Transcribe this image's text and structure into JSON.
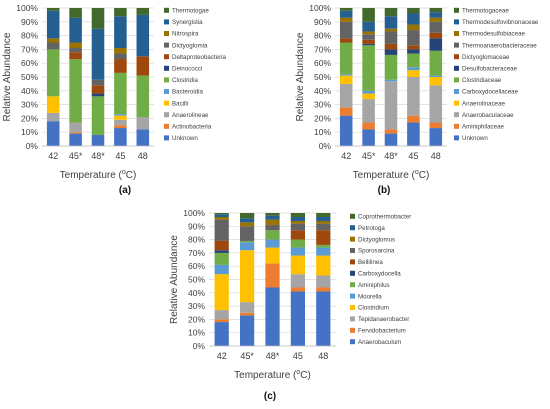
{
  "chart_data": [
    {
      "type": "bar",
      "panel_label": "(a)",
      "xlabel": "Temperature (",
      "xlabel_unit": "o",
      "xlabel_end": "C)",
      "ylabel": "Relative Abundance",
      "categories": [
        "42",
        "45*",
        "48*",
        "45",
        "48"
      ],
      "y_ticks": [
        "0%",
        "10%",
        "20%",
        "30%",
        "40%",
        "50%",
        "60%",
        "70%",
        "80%",
        "90%",
        "100%"
      ],
      "ylim": [
        0,
        100
      ],
      "stacked": true,
      "legend_position": "right",
      "series": [
        {
          "name": "Unknown",
          "color": "#4472C4",
          "values": [
            18,
            9,
            8,
            13,
            12
          ]
        },
        {
          "name": "Actinobacteria",
          "color": "#ED7D31",
          "values": [
            0,
            1,
            0,
            2,
            0
          ]
        },
        {
          "name": "Anaerolineae",
          "color": "#A5A5A5",
          "values": [
            6,
            7,
            0,
            4,
            9
          ]
        },
        {
          "name": "Bacilli",
          "color": "#FFC000",
          "values": [
            12,
            0,
            0,
            3,
            0
          ]
        },
        {
          "name": "Bacteroidia",
          "color": "#5B9BD5",
          "values": [
            0,
            0,
            0,
            1,
            0
          ]
        },
        {
          "name": "Clostridia",
          "color": "#70AD47",
          "values": [
            34,
            46,
            28,
            30,
            30
          ]
        },
        {
          "name": "Deinococci",
          "color": "#264478",
          "values": [
            0,
            0,
            2,
            0,
            0
          ]
        },
        {
          "name": "Deltaproteobacteria",
          "color": "#9E480E",
          "values": [
            0,
            5,
            6,
            10,
            14
          ]
        },
        {
          "name": "Dictyoglomia",
          "color": "#636363",
          "values": [
            5,
            3,
            4,
            4,
            0
          ]
        },
        {
          "name": "Nitrospira",
          "color": "#997300",
          "values": [
            3,
            4,
            0,
            4,
            0
          ]
        },
        {
          "name": "Synergistia",
          "color": "#255E91",
          "values": [
            20,
            18,
            37,
            23,
            30
          ]
        },
        {
          "name": "Thermotogae",
          "color": "#43682B",
          "values": [
            2,
            7,
            15,
            6,
            5
          ]
        }
      ]
    },
    {
      "type": "bar",
      "panel_label": "(b)",
      "xlabel": "Temperature (",
      "xlabel_unit": "o",
      "xlabel_end": "C)",
      "ylabel": "Relative Abundance",
      "categories": [
        "42",
        "45*",
        "48*",
        "45",
        "48"
      ],
      "y_ticks": [
        "0%",
        "10%",
        "20%",
        "30%",
        "40%",
        "50%",
        "60%",
        "70%",
        "80%",
        "90%",
        "100%"
      ],
      "ylim": [
        0,
        100
      ],
      "stacked": true,
      "legend_position": "right",
      "series": [
        {
          "name": "Unknown",
          "color": "#4472C4",
          "values": [
            22,
            12,
            9,
            17,
            13
          ]
        },
        {
          "name": "Aminiphilaceae",
          "color": "#ED7D31",
          "values": [
            6,
            5,
            3,
            5,
            4
          ]
        },
        {
          "name": "Anaerobaculaceae",
          "color": "#A5A5A5",
          "values": [
            17,
            17,
            35,
            28,
            27
          ]
        },
        {
          "name": "Anaerolinaceae",
          "color": "#FFC000",
          "values": [
            6,
            4,
            0,
            5,
            6
          ]
        },
        {
          "name": "Carboxydocellaceae",
          "color": "#5B9BD5",
          "values": [
            1,
            2,
            1,
            2,
            1
          ]
        },
        {
          "name": "Clostridiaceae",
          "color": "#70AD47",
          "values": [
            23,
            33,
            18,
            10,
            18
          ]
        },
        {
          "name": "Desulfobacteraceae",
          "color": "#264478",
          "values": [
            0,
            1,
            4,
            3,
            9
          ]
        },
        {
          "name": "Dictyoglomaceae",
          "color": "#9E480E",
          "values": [
            3,
            3,
            4,
            3,
            4
          ]
        },
        {
          "name": "Thermoanaerobacteraceae",
          "color": "#636363",
          "values": [
            12,
            4,
            9,
            11,
            8
          ]
        },
        {
          "name": "Thermodesulfobiaceae",
          "color": "#997300",
          "values": [
            3,
            2,
            2,
            4,
            3
          ]
        },
        {
          "name": "Thermodesulfovibrionaceae",
          "color": "#255E91",
          "values": [
            5,
            7,
            9,
            8,
            4
          ]
        },
        {
          "name": "Thermotogaceae",
          "color": "#43682B",
          "values": [
            2,
            10,
            6,
            4,
            3
          ]
        }
      ]
    },
    {
      "type": "bar",
      "panel_label": "(c)",
      "xlabel": "Temperature (",
      "xlabel_unit": "o",
      "xlabel_end": "C)",
      "ylabel": "Relative Abundance",
      "categories": [
        "42",
        "45*",
        "48*",
        "45",
        "48"
      ],
      "y_ticks": [
        "0%",
        "10%",
        "20%",
        "30%",
        "40%",
        "50%",
        "60%",
        "70%",
        "80%",
        "90%",
        "100%"
      ],
      "ylim": [
        0,
        100
      ],
      "stacked": true,
      "legend_position": "right",
      "series": [
        {
          "name": "Anaerobaculum",
          "color": "#4472C4",
          "values": [
            18,
            23,
            44,
            41,
            41
          ]
        },
        {
          "name": "Fervidobacterium",
          "color": "#ED7D31",
          "values": [
            2,
            2,
            18,
            3,
            3
          ]
        },
        {
          "name": "Tepidanaerobacter",
          "color": "#A5A5A5",
          "values": [
            7,
            8,
            0,
            10,
            9
          ]
        },
        {
          "name": "Clostridium",
          "color": "#FFC000",
          "values": [
            27,
            39,
            12,
            14,
            15
          ]
        },
        {
          "name": "Moorella",
          "color": "#5B9BD5",
          "values": [
            7,
            6,
            6,
            6,
            6
          ]
        },
        {
          "name": "Aminiphilus",
          "color": "#70AD47",
          "values": [
            9,
            1,
            7,
            6,
            2
          ]
        },
        {
          "name": "Carboxydocella",
          "color": "#264478",
          "values": [
            2,
            0,
            0,
            0,
            0
          ]
        },
        {
          "name": "Bellilinea",
          "color": "#9E480E",
          "values": [
            7,
            0,
            0,
            7,
            11
          ]
        },
        {
          "name": "Sporosarcina",
          "color": "#636363",
          "values": [
            16,
            11,
            4,
            5,
            5
          ]
        },
        {
          "name": "Dictyoglomus",
          "color": "#997300",
          "values": [
            2,
            3,
            4,
            2,
            2
          ]
        },
        {
          "name": "Petrotoga",
          "color": "#255E91",
          "values": [
            2,
            3,
            3,
            3,
            3
          ]
        },
        {
          "name": "Coprothermobacter",
          "color": "#43682B",
          "values": [
            1,
            4,
            2,
            3,
            3
          ]
        }
      ]
    }
  ]
}
